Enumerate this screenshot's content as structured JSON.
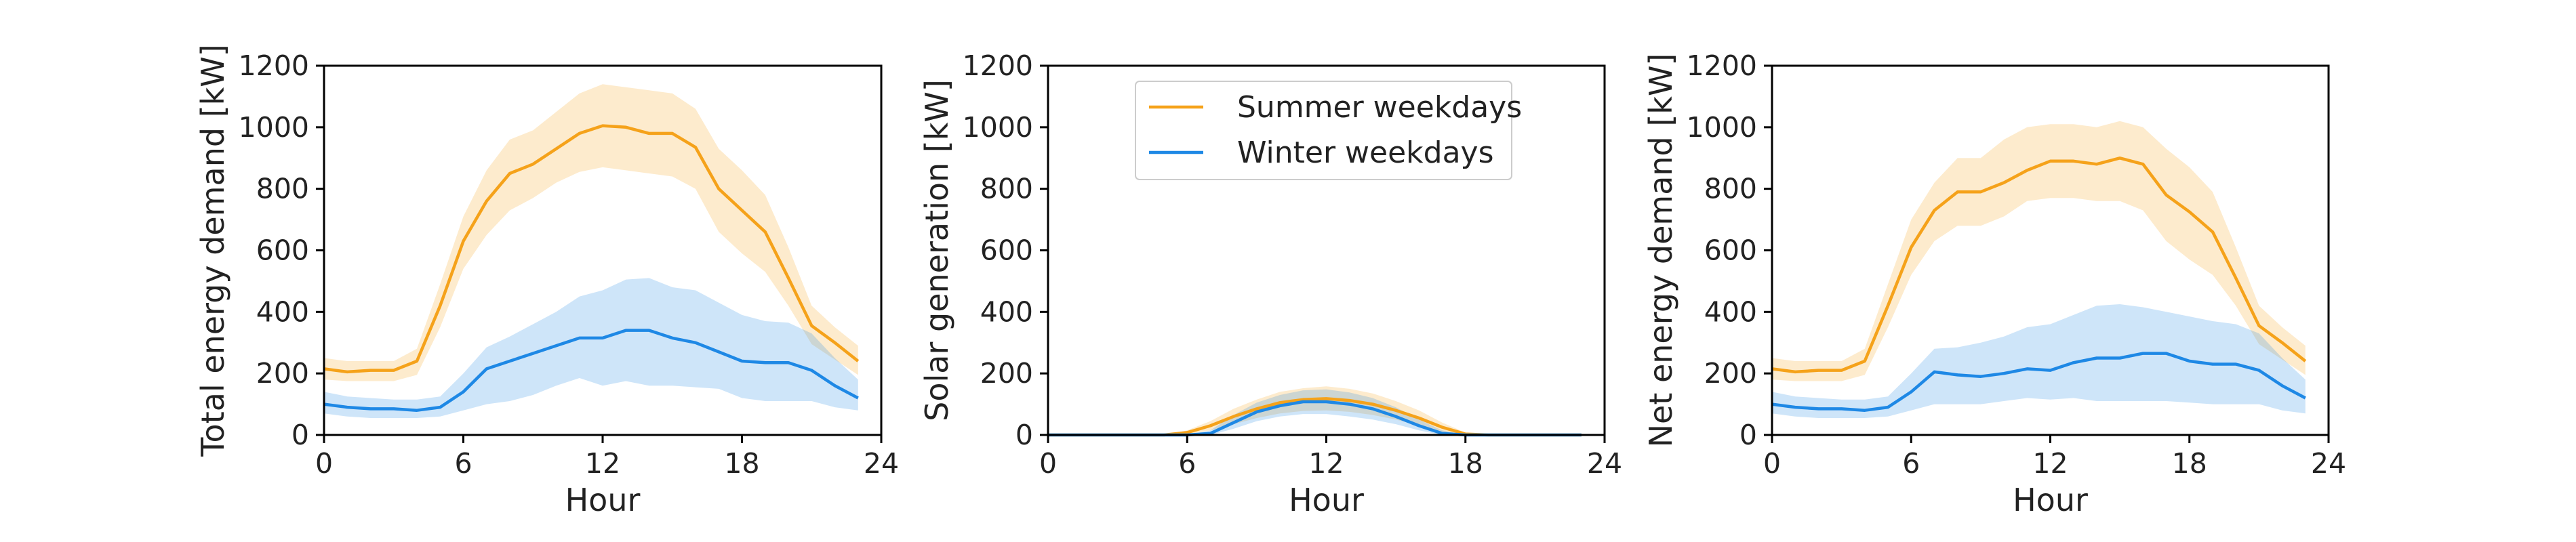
{
  "chart_data": [
    {
      "type": "line",
      "xlabel": "Hour",
      "ylabel": "Total energy demand [kW]",
      "xlim": [
        0,
        24
      ],
      "ylim": [
        0,
        1200
      ],
      "xticks": [
        "0",
        "6",
        "12",
        "18",
        "24"
      ],
      "yticks": [
        "0",
        "200",
        "400",
        "600",
        "800",
        "1000",
        "1200"
      ],
      "grid": false,
      "x": [
        0,
        1,
        2,
        3,
        4,
        5,
        6,
        7,
        8,
        9,
        10,
        11,
        12,
        13,
        14,
        15,
        16,
        17,
        18,
        19,
        20,
        21,
        22,
        23
      ],
      "series": [
        {
          "name": "Summer weekdays",
          "color": "#f5a21a",
          "values": [
            215,
            205,
            210,
            210,
            240,
            420,
            630,
            760,
            850,
            880,
            930,
            980,
            1005,
            1000,
            980,
            980,
            935,
            800,
            730,
            660,
            510,
            355,
            300,
            240
          ],
          "lower": [
            180,
            175,
            175,
            175,
            195,
            350,
            540,
            650,
            730,
            770,
            820,
            855,
            870,
            860,
            850,
            840,
            800,
            660,
            590,
            530,
            420,
            295,
            245,
            195
          ],
          "upper": [
            250,
            240,
            240,
            240,
            280,
            490,
            710,
            860,
            960,
            990,
            1050,
            1110,
            1140,
            1130,
            1120,
            1110,
            1060,
            930,
            860,
            780,
            610,
            420,
            350,
            290
          ]
        },
        {
          "name": "Winter weekdays",
          "color": "#1e88e5",
          "values": [
            100,
            90,
            85,
            85,
            80,
            90,
            140,
            215,
            240,
            265,
            290,
            315,
            315,
            340,
            340,
            315,
            300,
            270,
            240,
            235,
            235,
            210,
            160,
            120
          ],
          "lower": [
            70,
            60,
            55,
            55,
            55,
            60,
            80,
            100,
            110,
            130,
            160,
            185,
            160,
            175,
            160,
            160,
            155,
            150,
            120,
            110,
            110,
            110,
            90,
            80
          ],
          "upper": [
            140,
            125,
            120,
            115,
            115,
            125,
            200,
            285,
            320,
            360,
            400,
            450,
            470,
            505,
            510,
            480,
            470,
            430,
            390,
            370,
            365,
            330,
            250,
            180
          ]
        }
      ]
    },
    {
      "type": "line",
      "xlabel": "Hour",
      "ylabel": "Solar generation [kW]",
      "xlim": [
        0,
        24
      ],
      "ylim": [
        0,
        1200
      ],
      "xticks": [
        "0",
        "6",
        "12",
        "18",
        "24"
      ],
      "yticks": [
        "0",
        "200",
        "400",
        "600",
        "800",
        "1000",
        "1200"
      ],
      "grid": false,
      "legend": "top-center",
      "x": [
        0,
        1,
        2,
        3,
        4,
        5,
        6,
        7,
        8,
        9,
        10,
        11,
        12,
        13,
        14,
        15,
        16,
        17,
        18,
        19,
        20,
        21,
        22,
        23
      ],
      "series": [
        {
          "name": "Summer weekdays",
          "color": "#f5a21a",
          "values": [
            0,
            0,
            0,
            0,
            0,
            0,
            8,
            30,
            60,
            85,
            105,
            115,
            118,
            112,
            100,
            80,
            55,
            25,
            3,
            0,
            0,
            0,
            0,
            0
          ],
          "lower": [
            0,
            0,
            0,
            0,
            0,
            0,
            3,
            15,
            35,
            55,
            70,
            78,
            80,
            75,
            65,
            50,
            30,
            10,
            0,
            0,
            0,
            0,
            0,
            0
          ],
          "upper": [
            0,
            0,
            0,
            0,
            0,
            0,
            15,
            45,
            85,
            115,
            140,
            152,
            158,
            150,
            135,
            110,
            80,
            40,
            8,
            0,
            0,
            0,
            0,
            0
          ]
        },
        {
          "name": "Winter weekdays",
          "color": "#1e88e5",
          "values": [
            0,
            0,
            0,
            0,
            0,
            0,
            0,
            5,
            40,
            75,
            95,
            108,
            108,
            100,
            85,
            60,
            30,
            5,
            0,
            0,
            0,
            0,
            0,
            0
          ],
          "lower": [
            0,
            0,
            0,
            0,
            0,
            0,
            0,
            0,
            20,
            45,
            60,
            68,
            68,
            60,
            50,
            35,
            15,
            0,
            0,
            0,
            0,
            0,
            0,
            0
          ],
          "upper": [
            0,
            0,
            0,
            0,
            0,
            0,
            0,
            15,
            65,
            105,
            130,
            145,
            148,
            138,
            120,
            90,
            50,
            15,
            0,
            0,
            0,
            0,
            0,
            0
          ]
        }
      ]
    },
    {
      "type": "line",
      "xlabel": "Hour",
      "ylabel": "Net energy demand [kW]",
      "xlim": [
        0,
        24
      ],
      "ylim": [
        0,
        1200
      ],
      "xticks": [
        "0",
        "6",
        "12",
        "18",
        "24"
      ],
      "yticks": [
        "0",
        "200",
        "400",
        "600",
        "800",
        "1000",
        "1200"
      ],
      "grid": false,
      "x": [
        0,
        1,
        2,
        3,
        4,
        5,
        6,
        7,
        8,
        9,
        10,
        11,
        12,
        13,
        14,
        15,
        16,
        17,
        18,
        19,
        20,
        21,
        22,
        23
      ],
      "series": [
        {
          "name": "Summer weekdays",
          "color": "#f5a21a",
          "values": [
            215,
            205,
            210,
            210,
            240,
            420,
            610,
            730,
            790,
            790,
            820,
            860,
            890,
            890,
            880,
            900,
            880,
            780,
            725,
            660,
            510,
            355,
            300,
            240
          ],
          "lower": [
            180,
            175,
            175,
            175,
            195,
            350,
            520,
            630,
            680,
            680,
            710,
            760,
            770,
            770,
            760,
            760,
            730,
            630,
            570,
            520,
            420,
            295,
            245,
            195
          ],
          "upper": [
            250,
            240,
            240,
            240,
            280,
            490,
            700,
            820,
            900,
            900,
            960,
            1000,
            1010,
            1010,
            1000,
            1020,
            1000,
            930,
            870,
            790,
            610,
            420,
            350,
            290
          ]
        },
        {
          "name": "Winter weekdays",
          "color": "#1e88e5",
          "values": [
            100,
            90,
            85,
            85,
            80,
            90,
            140,
            205,
            195,
            190,
            200,
            215,
            210,
            235,
            250,
            250,
            265,
            265,
            240,
            230,
            230,
            210,
            160,
            120
          ],
          "lower": [
            70,
            60,
            55,
            55,
            55,
            60,
            80,
            100,
            100,
            100,
            110,
            120,
            115,
            120,
            110,
            110,
            110,
            110,
            105,
            100,
            100,
            100,
            80,
            70
          ],
          "upper": [
            140,
            125,
            120,
            115,
            115,
            125,
            200,
            280,
            285,
            300,
            320,
            350,
            360,
            390,
            420,
            425,
            415,
            400,
            385,
            370,
            360,
            330,
            250,
            180
          ]
        }
      ]
    }
  ]
}
